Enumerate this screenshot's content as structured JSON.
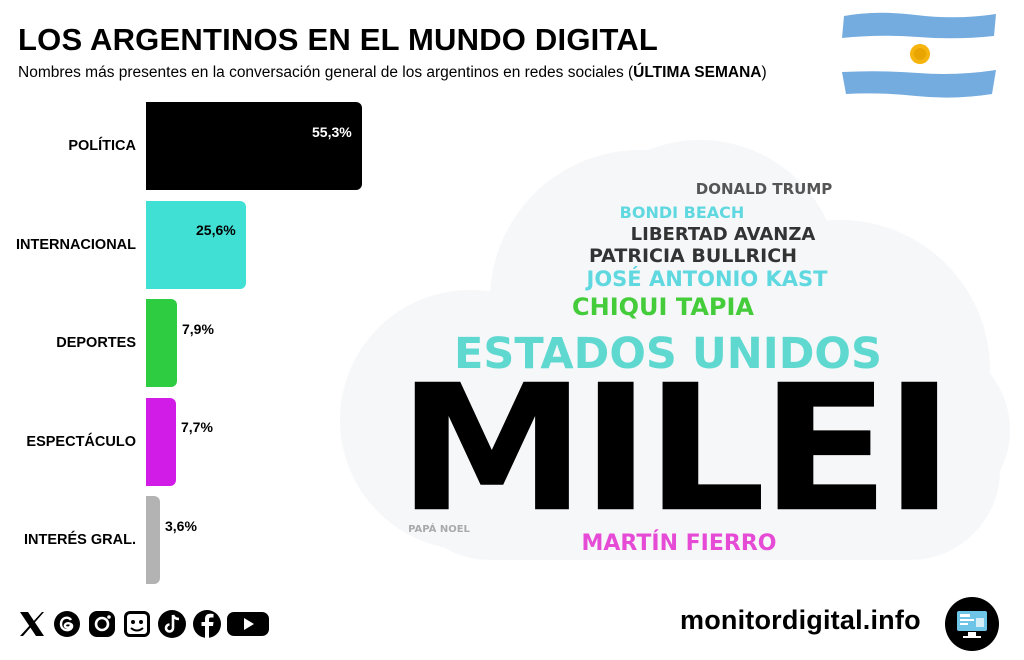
{
  "header": {
    "title": "LOS ARGENTINOS EN EL MUNDO DIGITAL",
    "subtitle_pre": "Nombres más presentes en la conversación general de los argentinos en redes sociales (",
    "subtitle_bold": "ÚLTIMA SEMANA",
    "subtitle_post": ")"
  },
  "chart_data": {
    "type": "bar",
    "orientation": "horizontal",
    "categories": [
      "POLÍTICA",
      "INTERNACIONAL",
      "DEPORTES",
      "ESPECTÁCULO",
      "INTERÉS GRAL."
    ],
    "values": [
      55.3,
      25.6,
      7.9,
      7.7,
      3.6
    ],
    "value_labels": [
      "55,3%",
      "25,6%",
      "7,9%",
      "7,7%",
      "3,6%"
    ],
    "colors": [
      "#000000",
      "#40E0D5",
      "#2ECC40",
      "#D11BE6",
      "#B3B3B3"
    ],
    "xlim": [
      0,
      55.3
    ],
    "grid": false,
    "legend": "none"
  },
  "word_cloud": [
    {
      "text": "DONALD TRUMP",
      "color": "#555555"
    },
    {
      "text": "BONDI BEACH",
      "color": "#5FD8DF"
    },
    {
      "text": "LIBERTAD AVANZA",
      "color": "#333333"
    },
    {
      "text": "PATRICIA BULLRICH",
      "color": "#333333"
    },
    {
      "text": "JOSÉ ANTONIO KAST",
      "color": "#5FD8DF"
    },
    {
      "text": "CHIQUI TAPIA",
      "color": "#44CC3B"
    },
    {
      "text": "ESTADOS UNIDOS",
      "color": "#5FD8D0"
    },
    {
      "text": "MILEI",
      "color": "#000000"
    },
    {
      "text": "PAPÁ NOEL",
      "color": "#AAAAAA"
    },
    {
      "text": "MARTÍN FIERRO",
      "color": "#E64BD6"
    }
  ],
  "social_icons": [
    "x-icon",
    "threads-icon",
    "instagram-icon",
    "meme-icon",
    "tiktok-icon",
    "facebook-icon",
    "youtube-icon"
  ],
  "footer": {
    "brand": "monitordigital.info",
    "logo_icon": "monitor-icon"
  }
}
